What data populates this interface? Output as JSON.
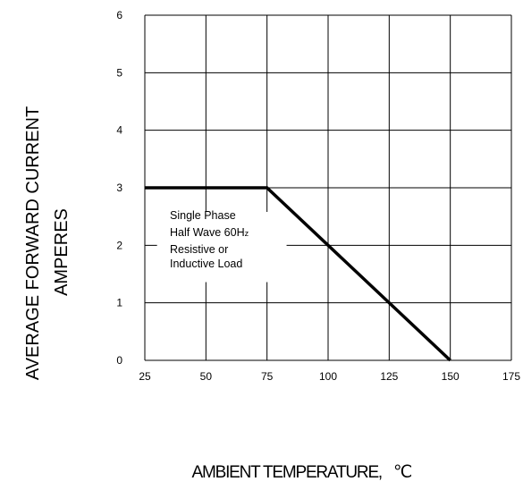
{
  "chart_data": {
    "type": "line",
    "title": "",
    "xlabel": "AMBIENT TEMPERATURE,",
    "xlabel_unit": "℃",
    "ylabel_lines": [
      "AVERAGE FORWARD CURRENT",
      "AMPERES"
    ],
    "xlim": [
      25,
      175
    ],
    "ylim": [
      0,
      6
    ],
    "x_ticks": [
      25,
      50,
      75,
      100,
      125,
      150,
      175
    ],
    "y_ticks": [
      0,
      1,
      2,
      3,
      4,
      5,
      6
    ],
    "grid": true,
    "series": [
      {
        "x": [
          25,
          75,
          150
        ],
        "y": [
          3,
          3,
          0
        ]
      }
    ],
    "annotation": {
      "lines": [
        "Single Phase",
        "Half Wave 60H",
        "Resistive or",
        "Inductive Load"
      ],
      "subscript": "z"
    }
  }
}
